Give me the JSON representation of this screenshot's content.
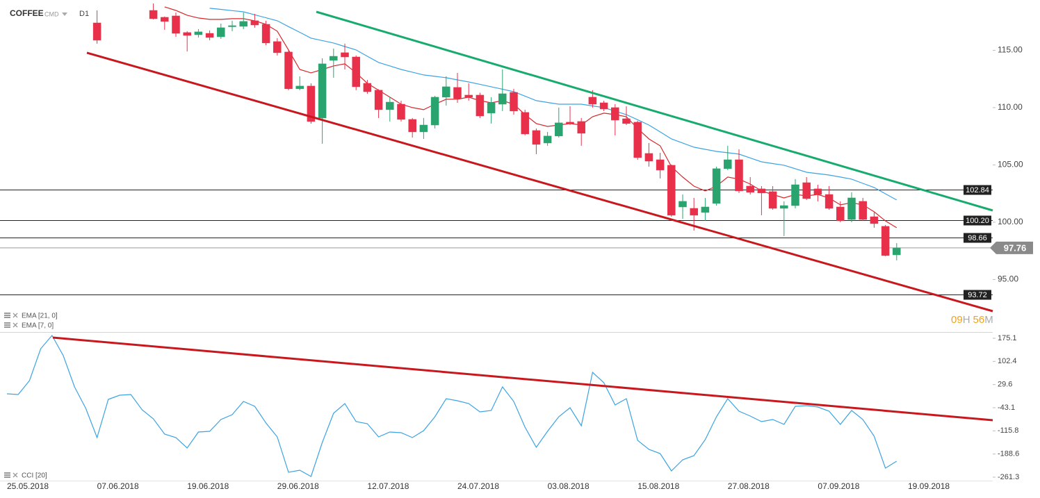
{
  "header": {
    "symbol": "COFFEE",
    "market": "CMD",
    "timeframe": "D1"
  },
  "chart_data": [
    {
      "type": "candlestick",
      "categories": [
        "25.05.2018",
        null,
        null,
        null,
        null,
        null,
        null,
        null,
        "07.06.2018",
        null,
        null,
        null,
        null,
        null,
        null,
        null,
        "19.06.2018",
        null,
        null,
        null,
        null,
        null,
        null,
        null,
        "29.06.2018",
        null,
        null,
        null,
        null,
        null,
        null,
        null,
        "12.07.2018",
        null,
        null,
        null,
        null,
        null,
        null,
        null,
        "24.07.2018",
        null,
        null,
        null,
        null,
        null,
        null,
        null,
        "03.08.2018",
        null,
        null,
        null,
        null,
        null,
        null,
        null,
        "15.08.2018",
        null,
        null,
        null,
        null,
        null,
        null,
        null,
        "27.08.2018",
        null,
        null,
        null,
        null,
        null,
        null,
        null,
        "07.09.2018",
        null,
        null,
        null,
        null,
        null,
        null,
        null,
        "19.09.2018",
        null,
        null,
        null,
        null,
        null,
        null,
        null
      ],
      "open": [
        null,
        null,
        null,
        null,
        null,
        null,
        null,
        null,
        117.39,
        null,
        null,
        null,
        null,
        118.48,
        117.88,
        118.0,
        116.55,
        116.36,
        116.48,
        116.18,
        117.06,
        117.09,
        117.58,
        117.27,
        115.76,
        114.85,
        111.64,
        111.88,
        109.09,
        114.12,
        114.79,
        114.42,
        112.12,
        111.52,
        109.82,
        110.3,
        108.97,
        107.88,
        108.48,
        110.91,
        111.76,
        111.09,
        111.09,
        109.52,
        110.3,
        111.33,
        109.58,
        108.0,
        106.91,
        107.52,
        108.73,
        108.79,
        110.91,
        110.42,
        110.0,
        109.03,
        108.73,
        106.0,
        105.45,
        104.97,
        101.33,
        101.21,
        100.85,
        101.64,
        104.67,
        105.45,
        103.15,
        102.91,
        102.67,
        101.21,
        101.45,
        103.45,
        102.91,
        102.42,
        101.33,
        100.24,
        101.82,
        100.48,
        99.64,
        97.15,
        null,
        null,
        null,
        null,
        null,
        null,
        null,
        null
      ],
      "high": [
        null,
        null,
        null,
        null,
        null,
        null,
        null,
        null,
        118.48,
        null,
        null,
        null,
        null,
        119.09,
        117.95,
        118.3,
        116.67,
        116.85,
        116.73,
        117.33,
        117.58,
        118.3,
        118.18,
        117.58,
        116.06,
        115.03,
        112.73,
        112.12,
        114.3,
        115.15,
        115.58,
        114.55,
        112.42,
        111.6,
        110.91,
        110.6,
        109.09,
        109.09,
        111.03,
        112.73,
        113.03,
        112.12,
        111.3,
        110.91,
        113.33,
        111.64,
        109.82,
        108.18,
        107.88,
        110.0,
        110.12,
        109.09,
        111.52,
        110.6,
        110.3,
        110.12,
        108.85,
        106.91,
        106.06,
        105.03,
        102.42,
        102.12,
        102.12,
        104.85,
        106.67,
        106.36,
        103.94,
        103.15,
        103.15,
        101.82,
        103.76,
        103.94,
        103.27,
        103.15,
        101.82,
        102.61,
        102.12,
        100.85,
        99.76,
        98.18,
        null,
        null,
        null,
        null,
        null,
        null,
        null,
        null
      ],
      "low": [
        null,
        null,
        null,
        null,
        null,
        null,
        null,
        null,
        115.58,
        null,
        null,
        null,
        null,
        117.7,
        116.79,
        116.18,
        114.9,
        116.12,
        115.88,
        116.0,
        116.67,
        116.85,
        116.97,
        115.45,
        114.55,
        111.52,
        111.52,
        108.6,
        106.85,
        112.61,
        113.33,
        111.52,
        111.21,
        109.09,
        108.79,
        108.79,
        107.39,
        107.27,
        108.18,
        110.18,
        110.42,
        110.61,
        109.09,
        108.61,
        109.7,
        109.39,
        107.58,
        105.94,
        106.67,
        107.39,
        108.48,
        106.67,
        110.0,
        109.7,
        107.58,
        108.48,
        105.45,
        104.85,
        103.82,
        100.48,
        100.3,
        99.27,
        100.12,
        101.45,
        104.55,
        102.55,
        102.42,
        100.61,
        101.09,
        98.79,
        101.21,
        101.94,
        101.82,
        101.09,
        100.0,
        100.0,
        100.12,
        99.52,
        97.03,
        96.67,
        null,
        null,
        null,
        null,
        null,
        null,
        null,
        null
      ],
      "close": [
        null,
        null,
        null,
        null,
        null,
        null,
        null,
        null,
        115.88,
        null,
        null,
        null,
        null,
        117.76,
        117.52,
        116.48,
        116.3,
        116.61,
        116.12,
        116.97,
        117.15,
        117.52,
        117.21,
        115.64,
        114.79,
        111.64,
        111.88,
        108.79,
        113.82,
        114.48,
        114.42,
        111.82,
        111.39,
        109.82,
        110.48,
        108.97,
        107.88,
        108.48,
        110.91,
        111.82,
        110.79,
        110.91,
        109.27,
        110.42,
        111.21,
        109.7,
        107.7,
        106.79,
        107.52,
        108.67,
        108.61,
        107.76,
        110.3,
        109.88,
        108.91,
        108.61,
        105.64,
        105.33,
        104.55,
        100.61,
        101.82,
        100.61,
        101.33,
        104.67,
        105.45,
        102.73,
        102.61,
        102.55,
        101.21,
        101.45,
        103.27,
        102.06,
        102.42,
        101.21,
        100.12,
        102.12,
        100.24,
        99.88,
        97.09,
        97.76,
        null,
        null,
        null,
        null,
        null,
        null,
        null,
        null
      ],
      "up_color": "#2aa46e",
      "down_color": "#e8304b",
      "series": [
        {
          "name": "EMA [21, 0]",
          "color": "#3ba3e3",
          "values": [
            null,
            null,
            null,
            null,
            null,
            null,
            null,
            null,
            null,
            null,
            null,
            null,
            null,
            null,
            null,
            null,
            null,
            null,
            118.67,
            118.57,
            118.46,
            118.36,
            118.1,
            117.84,
            117.58,
            117.07,
            116.57,
            116.06,
            115.85,
            115.64,
            115.33,
            115.03,
            114.48,
            113.94,
            113.64,
            113.33,
            113.09,
            112.85,
            112.73,
            112.61,
            112.42,
            112.24,
            112.03,
            111.82,
            111.61,
            111.39,
            111.0,
            110.61,
            110.45,
            110.3,
            110.3,
            110.3,
            110.15,
            110.0,
            109.7,
            109.39,
            108.94,
            108.48,
            107.88,
            107.27,
            106.91,
            106.55,
            106.36,
            106.18,
            106.06,
            105.94,
            105.61,
            105.27,
            105.12,
            104.97,
            104.67,
            104.36,
            104.24,
            104.12,
            103.94,
            103.76,
            103.39,
            103.03,
            102.48,
            101.94,
            null,
            null,
            null,
            null,
            null,
            null,
            null,
            null
          ]
        },
        {
          "name": "EMA [7, 0]",
          "color": "#d8262b",
          "values": [
            null,
            null,
            null,
            null,
            null,
            null,
            null,
            null,
            null,
            null,
            null,
            null,
            null,
            null,
            118.79,
            118.48,
            118.06,
            117.82,
            117.7,
            117.7,
            117.76,
            117.76,
            117.58,
            117.27,
            116.67,
            115.03,
            113.33,
            113.03,
            113.33,
            113.64,
            113.82,
            113.03,
            112.12,
            111.52,
            110.91,
            110.3,
            110.0,
            109.82,
            110.3,
            110.73,
            110.73,
            110.91,
            110.61,
            110.42,
            110.61,
            110.3,
            109.39,
            108.61,
            108.36,
            108.48,
            108.61,
            108.48,
            109.21,
            109.52,
            109.39,
            109.21,
            108.18,
            107.27,
            106.67,
            104.85,
            103.94,
            103.15,
            102.73,
            103.15,
            103.94,
            103.76,
            103.33,
            102.73,
            102.42,
            102.12,
            102.42,
            102.3,
            102.42,
            102.12,
            101.52,
            101.7,
            101.52,
            100.91,
            100.12,
            99.52,
            null,
            null,
            null,
            null,
            null,
            null,
            null,
            null
          ]
        }
      ],
      "ylim": [
        90.42,
        119.39
      ],
      "yticks": [
        {
          "value": 115,
          "label": "115.00"
        },
        {
          "value": 110,
          "label": "110.00"
        },
        {
          "value": 105,
          "label": "105.00"
        },
        {
          "value": 100,
          "label": "100.00"
        },
        {
          "value": 95,
          "label": "95.00"
        }
      ],
      "levels": [
        102.84,
        {
          "value": 100.2,
          "label": "100.20"
        },
        98.66,
        93.72
      ],
      "current_price": 97.76,
      "countdown": {
        "hours": "09",
        "hours_unit": "H",
        "minutes": "56",
        "minutes_unit": "M"
      }
    },
    {
      "type": "line",
      "series": [
        {
          "name": "CCI [20]",
          "color": "#3ba3e3",
          "values": [
            0.5,
            -1.6,
            42.0,
            142.4,
            183.8,
            120.5,
            22.4,
            -45.3,
            -136.9,
            -16.9,
            -3.8,
            -1.6,
            -49.6,
            -78.0,
            -126.0,
            -136.9,
            -169.7,
            -119.5,
            -117.3,
            -80.2,
            -64.9,
            -23.5,
            -38.7,
            -91.1,
            -134.7,
            -246.0,
            -239.5,
            -259.1,
            -152.2,
            -60.6,
            -30.0,
            -86.7,
            -93.3,
            -134.7,
            -119.5,
            -121.7,
            -136.9,
            -115.1,
            -71.5,
            -14.7,
            -21.3,
            -30.0,
            -56.2,
            -51.8,
            22.4,
            -23.5,
            -104.2,
            -167.5,
            -117.3,
            -71.5,
            -43.1,
            -99.8,
            68.2,
            35.5,
            -34.4,
            -14.7,
            -145.7,
            -174.0,
            -187.1,
            -241.7,
            -206.8,
            -193.7,
            -143.5,
            -71.5,
            -14.7,
            -54.0,
            -69.3,
            -86.7,
            -80.2,
            -95.5,
            -38.7,
            -36.6,
            -40.9,
            -54.0,
            -95.5,
            -51.8,
            -80.2,
            -132.6,
            -232.9,
            -211.1,
            null,
            null,
            null,
            null,
            null,
            null,
            null,
            null
          ]
        }
      ],
      "ylim": [
        -272.2,
        190.4
      ],
      "yticks": [
        175.1,
        102.4,
        29.6,
        -43.1,
        -115.8,
        -188.6,
        -261.3
      ]
    }
  ]
}
